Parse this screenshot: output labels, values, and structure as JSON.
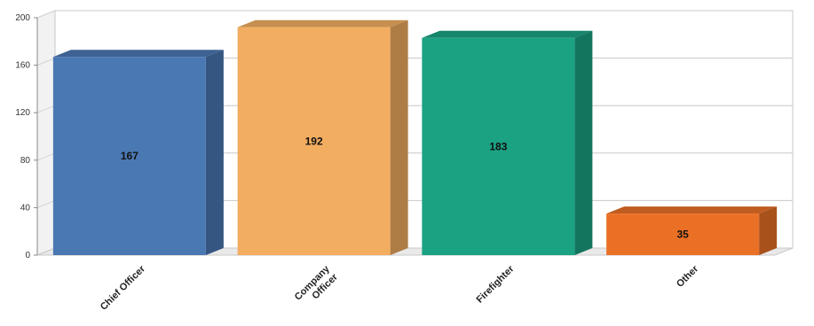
{
  "chart_data": {
    "type": "bar",
    "style": "3d",
    "categories": [
      "Chief Officer",
      "Company Officer",
      "Firefighter",
      "Other"
    ],
    "category_lines": [
      [
        "Chief Officer"
      ],
      [
        "Company",
        "Officer"
      ],
      [
        "Firefighter"
      ],
      [
        "Other"
      ]
    ],
    "values": [
      167,
      192,
      183,
      35
    ],
    "colors": [
      "#4a78b3",
      "#f2ad60",
      "#1aa283",
      "#ea7026"
    ],
    "ylim": [
      0,
      200
    ],
    "yticks": [
      0,
      40,
      80,
      120,
      160,
      200
    ],
    "grid": true,
    "legend": "none"
  }
}
